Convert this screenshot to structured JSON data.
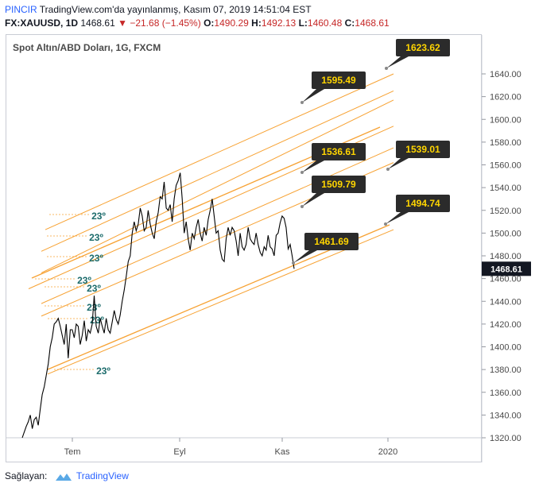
{
  "header": {
    "brand": "PINCIR",
    "published": "TradingView.com'da yayınlanmış, Kasım 07, 2019 14:51:04 EST",
    "symbol": "FX:XAUUSD, 1D",
    "last": "1468.61",
    "change_arrow": "▼",
    "change": "−21.68 (−1.45%)",
    "o_label": "O:",
    "o_value": "1490.29",
    "h_label": "H:",
    "h_value": "1492.13",
    "l_label": "L:",
    "l_value": "1460.48",
    "c_label": "C:",
    "c_value": "1468.61"
  },
  "footer": {
    "prefix": "Sağlayan:",
    "logo_text": "TradingView"
  },
  "colors": {
    "price_line": "#000000",
    "fan_line": "#f7a233",
    "callout_bg": "#2b2b2b",
    "callout_text": "#ffd500",
    "angle_text": "#1b6b6b",
    "axis_text": "#4a4a4a",
    "last_price_bg": "#131722"
  },
  "chart_data": {
    "type": "line",
    "title": "Spot Altın/ABD Doları, 1G, FXCM",
    "x_ticks": [
      "Tem",
      "Eyl",
      "Kas",
      "2020"
    ],
    "y_ticks": [
      1320,
      1340,
      1360,
      1380,
      1400,
      1420,
      1440,
      1460,
      1480,
      1500,
      1520,
      1540,
      1560,
      1580,
      1600,
      1620,
      1640
    ],
    "ylim": [
      1316,
      1650
    ],
    "y_tick_labels": [
      "1320.00",
      "1340.00",
      "1360.00",
      "1380.00",
      "1400.00",
      "1420.00",
      "1440.00",
      "1460.00",
      "1480.00",
      "1500.00",
      "1520.00",
      "1540.00",
      "1560.00",
      "1580.00",
      "1600.00",
      "1620.00",
      "1640.00"
    ],
    "last_price_label": "1468.61",
    "last_price": 1468.61,
    "series": [
      {
        "values": [
          1320,
          1325,
          1330,
          1334,
          1340,
          1328,
          1336,
          1338,
          1331,
          1345,
          1358,
          1365,
          1375,
          1385,
          1400,
          1408,
          1420,
          1422,
          1425,
          1418,
          1410,
          1402,
          1420,
          1390,
          1415,
          1415,
          1408,
          1420,
          1418,
          1402,
          1410,
          1423,
          1405,
          1415,
          1412,
          1420,
          1445,
          1418,
          1412,
          1425,
          1418,
          1412,
          1425,
          1415,
          1412,
          1422,
          1432,
          1424,
          1420,
          1428,
          1440,
          1450,
          1462,
          1475,
          1480,
          1500,
          1510,
          1502,
          1508,
          1522,
          1515,
          1502,
          1505,
          1520,
          1508,
          1500,
          1495,
          1510,
          1518,
          1532,
          1530,
          1545,
          1522,
          1520,
          1525,
          1510,
          1530,
          1542,
          1546,
          1553,
          1530,
          1500,
          1510,
          1495,
          1485,
          1500,
          1495,
          1505,
          1512,
          1500,
          1493,
          1505,
          1498,
          1512,
          1520,
          1530,
          1515,
          1500,
          1502,
          1485,
          1477,
          1475,
          1495,
          1505,
          1498,
          1505,
          1502,
          1493,
          1480,
          1500,
          1488,
          1485,
          1490,
          1505,
          1495,
          1492,
          1490,
          1500,
          1490,
          1483,
          1480,
          1488,
          1485,
          1498,
          1488,
          1486,
          1480,
          1498,
          1500,
          1509,
          1515,
          1513,
          1505,
          1486,
          1490,
          1480,
          1468.61
        ]
      }
    ],
    "fan_lines": [
      {
        "x0": 36,
        "y0": 1451,
        "x1": 495,
        "y1": 1594
      },
      {
        "x0": 52,
        "y0": 1465,
        "x1": 495,
        "y1": 1617
      },
      {
        "x0": 57,
        "y0": 1503,
        "x1": 495,
        "y1": 1640
      },
      {
        "x0": 52,
        "y0": 1484,
        "x1": 495,
        "y1": 1625
      },
      {
        "x0": 52,
        "y0": 1438,
        "x1": 495,
        "y1": 1575
      },
      {
        "x0": 52,
        "y0": 1427,
        "x1": 495,
        "y1": 1562
      },
      {
        "x0": 60,
        "y0": 1376,
        "x1": 495,
        "y1": 1503
      }
    ],
    "callouts": [
      {
        "label": "1623.62",
        "price": 1623.62,
        "anchor_price": 1623.62
      },
      {
        "label": "1595.49",
        "price": 1595.49,
        "anchor_price": 1597
      },
      {
        "label": "1536.61",
        "price": 1536.61,
        "anchor_price": 1538
      },
      {
        "label": "1539.01",
        "price": 1539.01,
        "anchor_price": 1541
      },
      {
        "label": "1509.79",
        "price": 1509.79,
        "anchor_price": 1510
      },
      {
        "label": "1494.74",
        "price": 1494.74,
        "anchor_price": 1495
      },
      {
        "label": "1461.69",
        "price": 1461.69,
        "anchor_price": 1462
      }
    ],
    "angle_labels": [
      "23º",
      "23º",
      "23º",
      "23º",
      "23º",
      "23º",
      "23º",
      "23º"
    ]
  }
}
